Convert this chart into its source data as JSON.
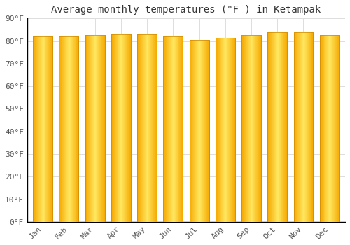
{
  "title": "Average monthly temperatures (°F ) in Ketampak",
  "months": [
    "Jan",
    "Feb",
    "Mar",
    "Apr",
    "May",
    "Jun",
    "Jul",
    "Aug",
    "Sep",
    "Oct",
    "Nov",
    "Dec"
  ],
  "values": [
    82,
    82,
    82.5,
    83,
    83,
    82,
    80.5,
    81.5,
    82.5,
    84,
    84,
    82.5
  ],
  "bar_color_center": "#FFD84D",
  "bar_color_edge": "#F5A800",
  "bar_edge_color": "#CC8800",
  "ylim": [
    0,
    90
  ],
  "yticks": [
    0,
    10,
    20,
    30,
    40,
    50,
    60,
    70,
    80,
    90
  ],
  "ytick_labels": [
    "0°F",
    "10°F",
    "20°F",
    "30°F",
    "40°F",
    "50°F",
    "60°F",
    "70°F",
    "80°F",
    "90°F"
  ],
  "background_color": "#FFFFFF",
  "grid_color": "#DDDDDD",
  "title_fontsize": 10,
  "tick_fontsize": 8,
  "font_family": "monospace"
}
